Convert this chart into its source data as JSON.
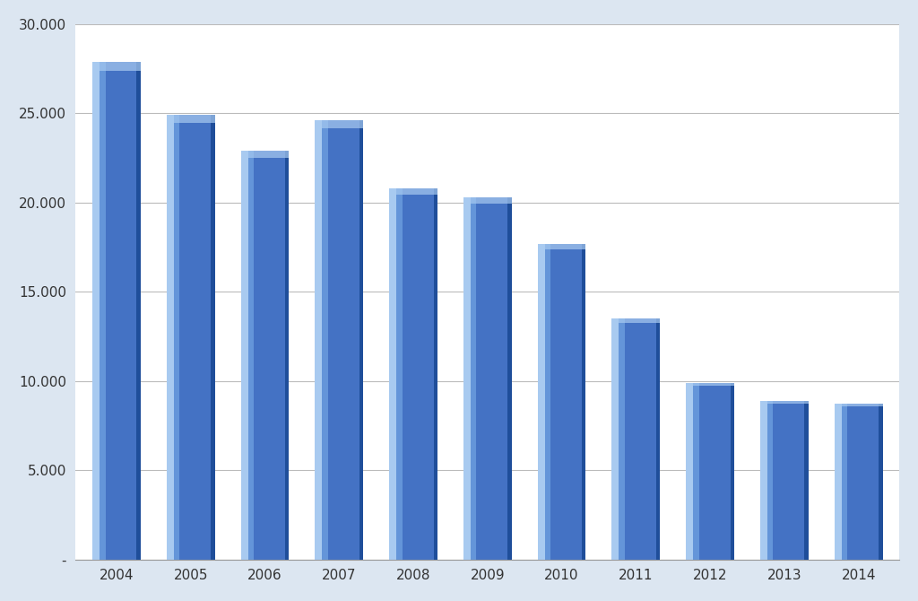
{
  "categories": [
    "2004",
    "2005",
    "2006",
    "2007",
    "2008",
    "2009",
    "2010",
    "2011",
    "2012",
    "2013",
    "2014"
  ],
  "values": [
    27900,
    24900,
    22900,
    24600,
    20800,
    20300,
    17700,
    13500,
    9900,
    8900,
    8730
  ],
  "bar_color_main": "#4472C4",
  "bar_color_light": "#7aaee8",
  "bar_color_lighter": "#a8caf0",
  "bar_color_dark": "#1f4e9a",
  "ylim": [
    0,
    30000
  ],
  "yticks": [
    0,
    5000,
    10000,
    15000,
    20000,
    25000,
    30000
  ],
  "ytick_labels": [
    "-",
    "5.000",
    "10.000",
    "15.000",
    "20.000",
    "25.000",
    "30.000"
  ],
  "background_color": "#dce6f1",
  "plot_background": "#ffffff",
  "grid_color": "#bbbbbb",
  "tick_fontsize": 11,
  "bar_width": 0.65
}
